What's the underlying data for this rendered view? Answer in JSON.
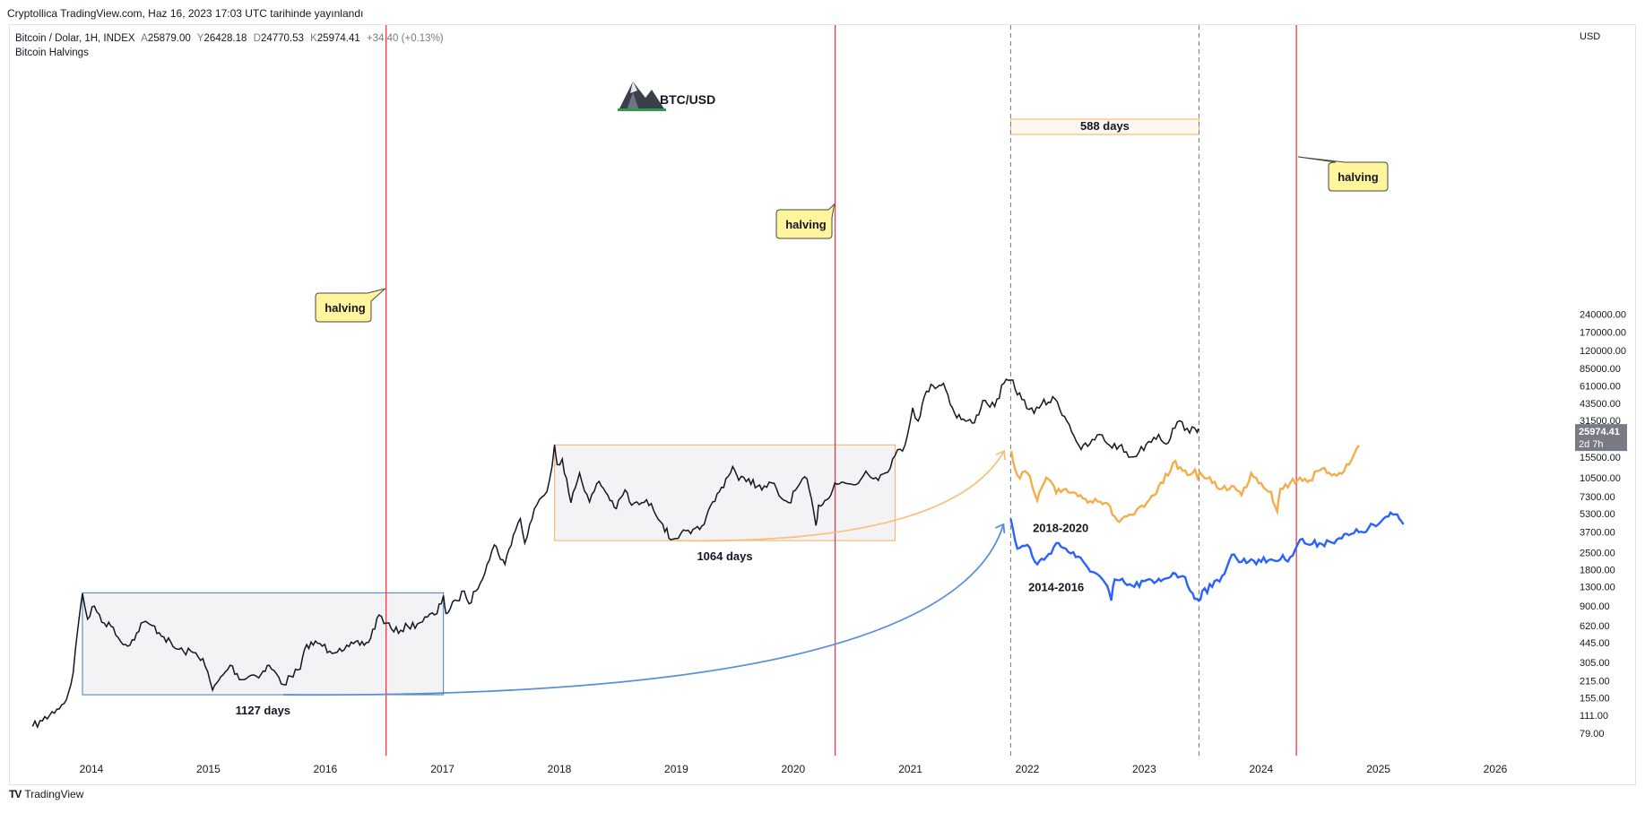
{
  "header": {
    "publish_caption": "Cryptollica TradingView.com, Haz 16, 2023 17:03 UTC tarihinde yayınlandı"
  },
  "legend": {
    "symbol": "Bitcoin / Dolar, 1H, INDEX",
    "open_label": "A",
    "open": "25879.00",
    "high_label": "Y",
    "high": "26428.18",
    "low_label": "D",
    "low": "24770.53",
    "close_label": "K",
    "close": "25974.41",
    "change": "+34.40 (+0.13%)",
    "indicator": "Bitcoin Halvings"
  },
  "footer": {
    "brand": "TradingView"
  },
  "chart_data": {
    "type": "line",
    "title": "BTC/USD",
    "currency": "USD",
    "y_scale": "log",
    "x_labels": [
      "2014",
      "2015",
      "2016",
      "2017",
      "2018",
      "2019",
      "2020",
      "2021",
      "2022",
      "2023",
      "2024",
      "2025",
      "2026"
    ],
    "y_ticks": [
      "240000.00",
      "170000.00",
      "120000.00",
      "85000.00",
      "61000.00",
      "43500.00",
      "31500.00",
      "15500.00",
      "10500.00",
      "7300.00",
      "5300.00",
      "3700.00",
      "2500.00",
      "1800.00",
      "1300.00",
      "900.00",
      "620.00",
      "445.00",
      "305.00",
      "215.00",
      "155.00",
      "111.00",
      "79.00"
    ],
    "price_tag": {
      "value": "25974.41",
      "countdown": "2d 7h",
      "color": "#787b86"
    },
    "colors": {
      "halving_line": "#f23645",
      "date_line": "#787b86",
      "box_blue": "#4a78b8",
      "box_orange": "#f5b25c",
      "box_fill": "#f3f3f6",
      "btc_candles": "#131722",
      "overlay_2018": "#f5ad4b",
      "overlay_2014": "#2962ff",
      "arrow_orange": "#f7c27d",
      "arrow_blue": "#5a8fd8",
      "callout_fill": "#fff59d"
    },
    "halvings": [
      "2016-07-09",
      "2020-05-11",
      "2024-04-20"
    ],
    "callouts": [
      "halving",
      "halving",
      "halving"
    ],
    "date_markers": [
      "2021-11-10",
      "2023-06-21"
    ],
    "ranges": [
      {
        "label": "1127 days",
        "start": "2013-12-04",
        "end": "2017-01-04",
        "high": 1160,
        "low": 165,
        "color": "blue"
      },
      {
        "label": "1064 days",
        "start": "2017-12-17",
        "end": "2020-11-14",
        "high": 19700,
        "low": 3150,
        "color": "orange"
      },
      {
        "label": "588 days",
        "start": "2021-11-10",
        "end": "2023-06-21",
        "color": "date"
      }
    ],
    "series": [
      {
        "kind": "btc",
        "points": [
          [
            "2013-07-01",
            90
          ],
          [
            "2013-08-01",
            100
          ],
          [
            "2013-09-15",
            125
          ],
          [
            "2013-10-15",
            150
          ],
          [
            "2013-11-05",
            250
          ],
          [
            "2013-11-20",
            600
          ],
          [
            "2013-12-04",
            1150
          ],
          [
            "2013-12-20",
            700
          ],
          [
            "2014-01-10",
            900
          ],
          [
            "2014-02-10",
            650
          ],
          [
            "2014-03-10",
            600
          ],
          [
            "2014-04-10",
            430
          ],
          [
            "2014-05-15",
            470
          ],
          [
            "2014-06-05",
            650
          ],
          [
            "2014-07-10",
            620
          ],
          [
            "2014-08-15",
            500
          ],
          [
            "2014-09-20",
            400
          ],
          [
            "2014-10-15",
            380
          ],
          [
            "2014-11-15",
            370
          ],
          [
            "2014-12-15",
            330
          ],
          [
            "2015-01-14",
            180
          ],
          [
            "2015-02-15",
            240
          ],
          [
            "2015-03-10",
            290
          ],
          [
            "2015-04-15",
            220
          ],
          [
            "2015-05-15",
            240
          ],
          [
            "2015-06-15",
            245
          ],
          [
            "2015-07-10",
            290
          ],
          [
            "2015-08-24",
            200
          ],
          [
            "2015-09-15",
            235
          ],
          [
            "2015-10-15",
            270
          ],
          [
            "2015-11-04",
            430
          ],
          [
            "2015-12-15",
            440
          ],
          [
            "2016-01-15",
            380
          ],
          [
            "2016-02-15",
            400
          ],
          [
            "2016-03-15",
            415
          ],
          [
            "2016-05-15",
            450
          ],
          [
            "2016-06-17",
            760
          ],
          [
            "2016-07-10",
            650
          ],
          [
            "2016-08-02",
            550
          ],
          [
            "2016-09-15",
            610
          ],
          [
            "2016-10-15",
            640
          ],
          [
            "2016-11-15",
            730
          ],
          [
            "2016-12-15",
            780
          ],
          [
            "2017-01-04",
            1100
          ],
          [
            "2017-01-12",
            780
          ],
          [
            "2017-02-15",
            1000
          ],
          [
            "2017-03-10",
            1200
          ],
          [
            "2017-03-25",
            940
          ],
          [
            "2017-04-15",
            1200
          ],
          [
            "2017-05-20",
            2000
          ],
          [
            "2017-06-12",
            2900
          ],
          [
            "2017-07-15",
            2000
          ],
          [
            "2017-08-10",
            3500
          ],
          [
            "2017-09-01",
            4800
          ],
          [
            "2017-09-15",
            3000
          ],
          [
            "2017-10-15",
            5800
          ],
          [
            "2017-11-15",
            7500
          ],
          [
            "2017-12-01",
            10000
          ],
          [
            "2017-12-17",
            19700
          ],
          [
            "2017-12-25",
            13500
          ],
          [
            "2018-01-10",
            15000
          ],
          [
            "2018-02-06",
            6500
          ],
          [
            "2018-03-05",
            11500
          ],
          [
            "2018-04-05",
            6600
          ],
          [
            "2018-05-05",
            9800
          ],
          [
            "2018-06-28",
            5800
          ],
          [
            "2018-07-25",
            8300
          ],
          [
            "2018-08-15",
            6200
          ],
          [
            "2018-09-15",
            6500
          ],
          [
            "2018-10-15",
            6400
          ],
          [
            "2018-11-20",
            4300
          ],
          [
            "2018-12-15",
            3200
          ],
          [
            "2019-01-15",
            3600
          ],
          [
            "2019-02-15",
            3600
          ],
          [
            "2019-03-15",
            3900
          ],
          [
            "2019-04-05",
            5000
          ],
          [
            "2019-05-15",
            8000
          ],
          [
            "2019-06-26",
            13000
          ],
          [
            "2019-07-15",
            10000
          ],
          [
            "2019-08-15",
            10300
          ],
          [
            "2019-09-25",
            8300
          ],
          [
            "2019-10-26",
            9500
          ],
          [
            "2019-11-25",
            7100
          ],
          [
            "2019-12-18",
            6500
          ],
          [
            "2020-01-15",
            8800
          ],
          [
            "2020-02-13",
            10300
          ],
          [
            "2020-03-12",
            4200
          ],
          [
            "2020-03-20",
            6200
          ],
          [
            "2020-04-15",
            6900
          ],
          [
            "2020-05-10",
            9500
          ],
          [
            "2020-06-15",
            9400
          ],
          [
            "2020-07-15",
            9200
          ],
          [
            "2020-08-15",
            11900
          ],
          [
            "2020-09-15",
            10500
          ],
          [
            "2020-10-15",
            11500
          ],
          [
            "2020-11-14",
            16000
          ],
          [
            "2020-12-15",
            19500
          ],
          [
            "2021-01-08",
            40000
          ],
          [
            "2021-01-25",
            31000
          ],
          [
            "2021-02-20",
            55000
          ],
          [
            "2021-03-13",
            61000
          ],
          [
            "2021-04-14",
            64000
          ],
          [
            "2021-05-19",
            36000
          ],
          [
            "2021-06-22",
            31000
          ],
          [
            "2021-07-20",
            30000
          ],
          [
            "2021-08-15",
            46000
          ],
          [
            "2021-09-21",
            41000
          ],
          [
            "2021-10-20",
            64000
          ],
          [
            "2021-11-10",
            68000
          ],
          [
            "2021-12-15",
            47000
          ],
          [
            "2022-01-22",
            36000
          ],
          [
            "2022-02-15",
            43000
          ],
          [
            "2022-03-28",
            47500
          ],
          [
            "2022-05-12",
            29000
          ],
          [
            "2022-06-18",
            18000
          ],
          [
            "2022-07-15",
            20000
          ],
          [
            "2022-08-15",
            24000
          ],
          [
            "2022-09-15",
            19500
          ],
          [
            "2022-10-15",
            19200
          ],
          [
            "2022-11-21",
            15600
          ],
          [
            "2022-12-15",
            17000
          ],
          [
            "2023-01-15",
            21000
          ],
          [
            "2023-02-15",
            24000
          ],
          [
            "2023-03-10",
            20000
          ],
          [
            "2023-04-14",
            30500
          ],
          [
            "2023-05-15",
            27000
          ],
          [
            "2023-06-15",
            25000
          ],
          [
            "2023-06-21",
            26000
          ]
        ]
      },
      {
        "name": "2018-2020",
        "points": [
          [
            "2021-11-12",
            17500
          ],
          [
            "2021-12-01",
            11000
          ],
          [
            "2022-01-01",
            11500
          ],
          [
            "2022-02-01",
            6800
          ],
          [
            "2022-03-01",
            10500
          ],
          [
            "2022-04-01",
            7800
          ],
          [
            "2022-05-01",
            8500
          ],
          [
            "2022-06-01",
            7800
          ],
          [
            "2022-07-01",
            7000
          ],
          [
            "2022-08-01",
            7000
          ],
          [
            "2022-09-01",
            6500
          ],
          [
            "2022-10-01",
            5000
          ],
          [
            "2022-10-15",
            4500
          ],
          [
            "2022-11-01",
            5000
          ],
          [
            "2022-12-01",
            5200
          ],
          [
            "2023-01-01",
            6000
          ],
          [
            "2023-02-01",
            7500
          ],
          [
            "2023-03-01",
            9500
          ],
          [
            "2023-04-01",
            14000
          ],
          [
            "2023-05-01",
            12000
          ],
          [
            "2023-06-01",
            11500
          ],
          [
            "2023-07-01",
            11000
          ],
          [
            "2023-08-01",
            9500
          ],
          [
            "2023-09-01",
            8500
          ],
          [
            "2023-10-01",
            9000
          ],
          [
            "2023-11-01",
            7500
          ],
          [
            "2023-12-01",
            11500
          ],
          [
            "2024-01-01",
            9500
          ],
          [
            "2024-02-01",
            8000
          ],
          [
            "2024-02-20",
            5500
          ],
          [
            "2024-03-01",
            8500
          ],
          [
            "2024-04-01",
            9500
          ],
          [
            "2024-05-01",
            10500
          ],
          [
            "2024-06-01",
            10000
          ],
          [
            "2024-07-01",
            12000
          ],
          [
            "2024-08-01",
            11500
          ],
          [
            "2024-09-01",
            11500
          ],
          [
            "2024-10-01",
            13500
          ],
          [
            "2024-11-01",
            19500
          ]
        ]
      },
      {
        "name": "2014-2016",
        "points": [
          [
            "2021-11-10",
            4800
          ],
          [
            "2021-12-01",
            2700
          ],
          [
            "2022-01-01",
            2900
          ],
          [
            "2022-02-01",
            2000
          ],
          [
            "2022-03-01",
            2300
          ],
          [
            "2022-04-01",
            3000
          ],
          [
            "2022-05-01",
            2700
          ],
          [
            "2022-06-01",
            2300
          ],
          [
            "2022-07-01",
            2000
          ],
          [
            "2022-08-01",
            1700
          ],
          [
            "2022-09-01",
            1400
          ],
          [
            "2022-09-20",
            1000
          ],
          [
            "2022-10-01",
            1500
          ],
          [
            "2022-11-01",
            1400
          ],
          [
            "2022-12-01",
            1300
          ],
          [
            "2023-01-01",
            1450
          ],
          [
            "2023-02-01",
            1400
          ],
          [
            "2023-03-01",
            1500
          ],
          [
            "2023-04-01",
            1700
          ],
          [
            "2023-05-01",
            1600
          ],
          [
            "2023-06-01",
            1150
          ],
          [
            "2023-06-20",
            1000
          ],
          [
            "2023-07-01",
            1200
          ],
          [
            "2023-08-01",
            1300
          ],
          [
            "2023-09-01",
            1600
          ],
          [
            "2023-10-01",
            2400
          ],
          [
            "2023-11-01",
            2100
          ],
          [
            "2023-12-01",
            2200
          ],
          [
            "2024-01-01",
            2100
          ],
          [
            "2024-02-01",
            2200
          ],
          [
            "2024-03-01",
            2200
          ],
          [
            "2024-04-01",
            2300
          ],
          [
            "2024-05-01",
            3200
          ],
          [
            "2024-06-01",
            2900
          ],
          [
            "2024-07-01",
            3000
          ],
          [
            "2024-08-01",
            3100
          ],
          [
            "2024-09-01",
            3300
          ],
          [
            "2024-10-01",
            3500
          ],
          [
            "2024-11-01",
            3700
          ],
          [
            "2024-12-01",
            4000
          ],
          [
            "2025-01-01",
            4300
          ],
          [
            "2025-02-01",
            5000
          ],
          [
            "2025-03-01",
            5200
          ],
          [
            "2025-03-20",
            4300
          ]
        ]
      }
    ]
  }
}
